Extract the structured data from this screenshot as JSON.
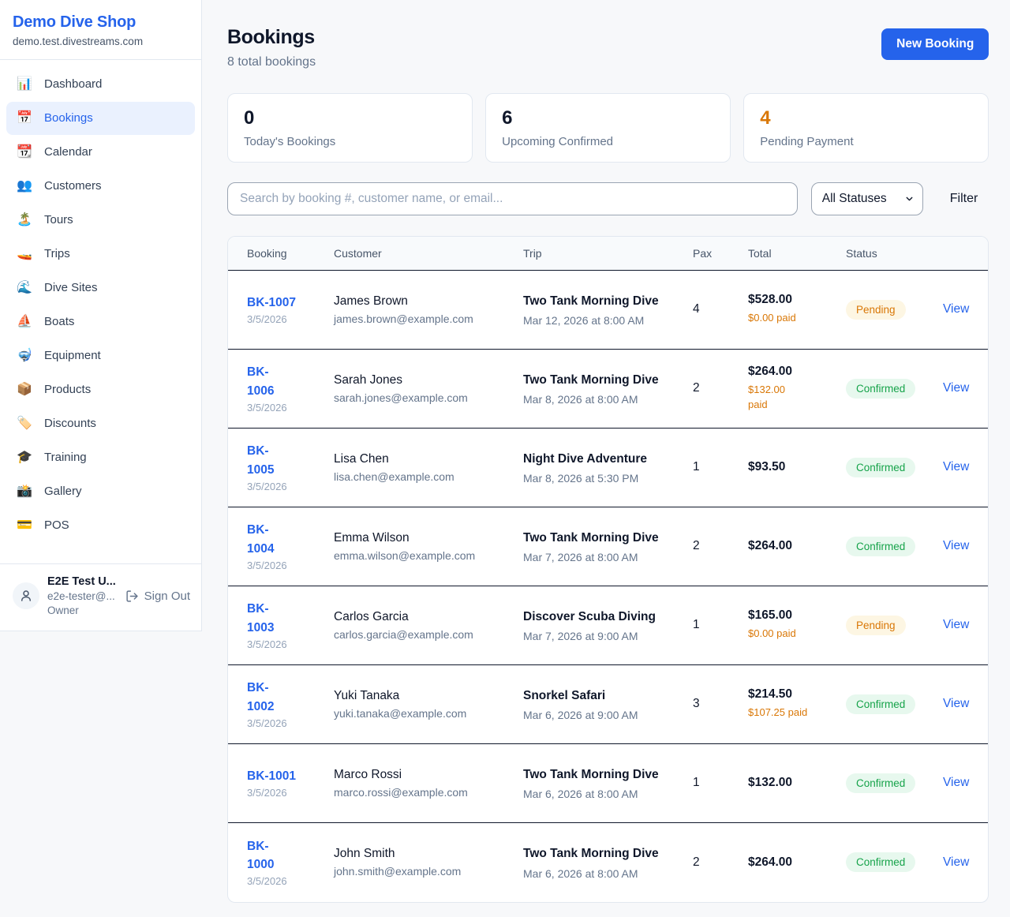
{
  "brand": {
    "name": "Demo Dive Shop",
    "domain": "demo.test.divestreams.com"
  },
  "nav": [
    {
      "label": "Dashboard",
      "icon": "📊",
      "icon_name": "bar-chart-icon",
      "active": false
    },
    {
      "label": "Bookings",
      "icon": "📅",
      "icon_name": "calendar-icon",
      "active": true
    },
    {
      "label": "Calendar",
      "icon": "📆",
      "icon_name": "tear-off-calendar-icon",
      "active": false
    },
    {
      "label": "Customers",
      "icon": "👥",
      "icon_name": "users-icon",
      "active": false
    },
    {
      "label": "Tours",
      "icon": "🏝️",
      "icon_name": "island-icon",
      "active": false
    },
    {
      "label": "Trips",
      "icon": "🚤",
      "icon_name": "speedboat-icon",
      "active": false
    },
    {
      "label": "Dive Sites",
      "icon": "🌊",
      "icon_name": "wave-icon",
      "active": false
    },
    {
      "label": "Boats",
      "icon": "⛵",
      "icon_name": "sailboat-icon",
      "active": false
    },
    {
      "label": "Equipment",
      "icon": "🤿",
      "icon_name": "diving-mask-icon",
      "active": false
    },
    {
      "label": "Products",
      "icon": "📦",
      "icon_name": "package-icon",
      "active": false
    },
    {
      "label": "Discounts",
      "icon": "🏷️",
      "icon_name": "tag-icon",
      "active": false
    },
    {
      "label": "Training",
      "icon": "🎓",
      "icon_name": "graduation-cap-icon",
      "active": false
    },
    {
      "label": "Gallery",
      "icon": "📸",
      "icon_name": "camera-icon",
      "active": false
    },
    {
      "label": "POS",
      "icon": "💳",
      "icon_name": "credit-card-icon",
      "active": false
    }
  ],
  "user": {
    "name": "E2E Test U...",
    "email": "e2e-tester@...",
    "role": "Owner",
    "sign_out": "Sign Out"
  },
  "header": {
    "title": "Bookings",
    "subtitle": "8 total bookings",
    "new_booking": "New Booking"
  },
  "stats": [
    {
      "value": "0",
      "label": "Today's Bookings",
      "value_color": "#0f172a"
    },
    {
      "value": "6",
      "label": "Upcoming Confirmed",
      "value_color": "#0f172a"
    },
    {
      "value": "4",
      "label": "Pending Payment",
      "value_color": "#d97706"
    }
  ],
  "filters": {
    "search_placeholder": "Search by booking #, customer name, or email...",
    "status_selected": "All Statuses",
    "filter_label": "Filter"
  },
  "table": {
    "columns": [
      "Booking",
      "Customer",
      "Trip",
      "Pax",
      "Total",
      "Status",
      ""
    ],
    "rows": [
      {
        "id": "BK-1007",
        "id_two_lines": false,
        "date": "3/5/2026",
        "customer": "James Brown",
        "email": "james.brown@example.com",
        "trip": "Two Tank Morning Dive",
        "trip_datetime": "Mar 12, 2026 at 8:00 AM",
        "pax": "4",
        "total": "$528.00",
        "paid": "$0.00 paid",
        "paid_two_lines": false,
        "status": "Pending",
        "action": "View"
      },
      {
        "id": "BK-1006",
        "id_two_lines": true,
        "date": "3/5/2026",
        "customer": "Sarah Jones",
        "email": "sarah.jones@example.com",
        "trip": "Two Tank Morning Dive",
        "trip_datetime": "Mar 8, 2026 at 8:00 AM",
        "pax": "2",
        "total": "$264.00",
        "paid": "$132.00 paid",
        "paid_two_lines": true,
        "status": "Confirmed",
        "action": "View"
      },
      {
        "id": "BK-1005",
        "id_two_lines": true,
        "date": "3/5/2026",
        "customer": "Lisa Chen",
        "email": "lisa.chen@example.com",
        "trip": "Night Dive Adventure",
        "trip_datetime": "Mar 8, 2026 at 5:30 PM",
        "pax": "1",
        "total": "$93.50",
        "paid": "",
        "paid_two_lines": false,
        "status": "Confirmed",
        "action": "View"
      },
      {
        "id": "BK-1004",
        "id_two_lines": true,
        "date": "3/5/2026",
        "customer": "Emma Wilson",
        "email": "emma.wilson@example.com",
        "trip": "Two Tank Morning Dive",
        "trip_datetime": "Mar 7, 2026 at 8:00 AM",
        "pax": "2",
        "total": "$264.00",
        "paid": "",
        "paid_two_lines": false,
        "status": "Confirmed",
        "action": "View"
      },
      {
        "id": "BK-1003",
        "id_two_lines": true,
        "date": "3/5/2026",
        "customer": "Carlos Garcia",
        "email": "carlos.garcia@example.com",
        "trip": "Discover Scuba Diving",
        "trip_datetime": "Mar 7, 2026 at 9:00 AM",
        "pax": "1",
        "total": "$165.00",
        "paid": "$0.00 paid",
        "paid_two_lines": false,
        "status": "Pending",
        "action": "View"
      },
      {
        "id": "BK-1002",
        "id_two_lines": true,
        "date": "3/5/2026",
        "customer": "Yuki Tanaka",
        "email": "yuki.tanaka@example.com",
        "trip": "Snorkel Safari",
        "trip_datetime": "Mar 6, 2026 at 9:00 AM",
        "pax": "3",
        "total": "$214.50",
        "paid": "$107.25 paid",
        "paid_two_lines": false,
        "status": "Confirmed",
        "action": "View"
      },
      {
        "id": "BK-1001",
        "id_two_lines": false,
        "date": "3/5/2026",
        "customer": "Marco Rossi",
        "email": "marco.rossi@example.com",
        "trip": "Two Tank Morning Dive",
        "trip_datetime": "Mar 6, 2026 at 8:00 AM",
        "pax": "1",
        "total": "$132.00",
        "paid": "",
        "paid_two_lines": false,
        "status": "Confirmed",
        "action": "View"
      },
      {
        "id": "BK-1000",
        "id_two_lines": true,
        "date": "3/5/2026",
        "customer": "John Smith",
        "email": "john.smith@example.com",
        "trip": "Two Tank Morning Dive",
        "trip_datetime": "Mar 6, 2026 at 8:00 AM",
        "pax": "2",
        "total": "$264.00",
        "paid": "",
        "paid_two_lines": false,
        "status": "Confirmed",
        "action": "View"
      }
    ]
  },
  "colors": {
    "accent": "#2563eb",
    "pending_text": "#d97706",
    "pending_bg": "#fdf6e3",
    "confirmed_text": "#16a34a",
    "confirmed_bg": "#e7f8ee",
    "paid_text": "#d97706"
  }
}
